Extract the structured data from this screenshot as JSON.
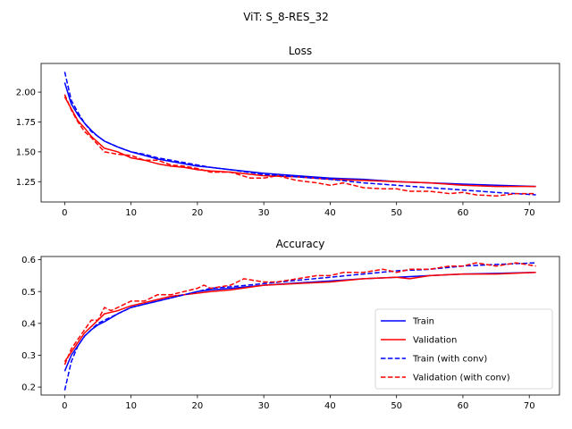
{
  "suptitle": "ViT: S_8-RES_32",
  "chart_data": [
    {
      "type": "line",
      "title": "Loss",
      "xlabel": "",
      "ylabel": "",
      "xlim": [
        -3.55,
        74.55
      ],
      "ylim": [
        1.08,
        2.24
      ],
      "xticks": [
        0,
        10,
        20,
        30,
        40,
        50,
        60,
        70
      ],
      "yticks": [
        1.25,
        1.5,
        1.75,
        2.0
      ],
      "ytick_labels": [
        "1.25",
        "1.50",
        "1.75",
        "2.00"
      ],
      "grid": false,
      "series": [
        {
          "name": "Train",
          "color": "#0000ff",
          "dash": "solid",
          "x": [
            0,
            1,
            2,
            3,
            4,
            5,
            6,
            8,
            10,
            12,
            14,
            16,
            18,
            20,
            22,
            25,
            30,
            35,
            40,
            45,
            50,
            55,
            60,
            65,
            71
          ],
          "y": [
            2.08,
            1.9,
            1.81,
            1.74,
            1.68,
            1.63,
            1.59,
            1.54,
            1.5,
            1.47,
            1.44,
            1.42,
            1.4,
            1.38,
            1.37,
            1.35,
            1.32,
            1.3,
            1.28,
            1.27,
            1.25,
            1.24,
            1.23,
            1.22,
            1.21
          ]
        },
        {
          "name": "Validation",
          "color": "#ff0000",
          "dash": "solid",
          "x": [
            0,
            1,
            2,
            3,
            4,
            5,
            6,
            8,
            10,
            12,
            14,
            16,
            18,
            20,
            22,
            25,
            30,
            35,
            40,
            45,
            50,
            55,
            60,
            65,
            71
          ],
          "y": [
            1.96,
            1.86,
            1.76,
            1.7,
            1.63,
            1.58,
            1.53,
            1.5,
            1.45,
            1.43,
            1.4,
            1.38,
            1.37,
            1.35,
            1.34,
            1.33,
            1.3,
            1.29,
            1.27,
            1.26,
            1.25,
            1.24,
            1.22,
            1.21,
            1.21
          ]
        },
        {
          "name": "Train (with conv)",
          "color": "#0000ff",
          "dash": "dashed",
          "x": [
            0,
            1,
            2,
            3,
            4,
            5,
            6,
            8,
            10,
            12,
            14,
            16,
            18,
            20,
            22,
            25,
            30,
            35,
            40,
            45,
            50,
            55,
            60,
            65,
            71
          ],
          "y": [
            2.17,
            1.93,
            1.83,
            1.74,
            1.67,
            1.63,
            1.59,
            1.54,
            1.5,
            1.48,
            1.45,
            1.43,
            1.41,
            1.39,
            1.37,
            1.35,
            1.31,
            1.29,
            1.27,
            1.24,
            1.22,
            1.2,
            1.18,
            1.16,
            1.14
          ]
        },
        {
          "name": "Validation (with conv)",
          "color": "#ff0000",
          "dash": "dashed",
          "x": [
            0,
            1,
            2,
            3,
            4,
            5,
            6,
            8,
            10,
            12,
            14,
            16,
            18,
            20,
            22,
            25,
            28,
            30,
            32,
            35,
            38,
            40,
            42,
            45,
            48,
            50,
            52,
            55,
            58,
            60,
            62,
            65,
            68,
            71
          ],
          "y": [
            1.98,
            1.85,
            1.75,
            1.67,
            1.62,
            1.56,
            1.5,
            1.48,
            1.47,
            1.43,
            1.43,
            1.39,
            1.38,
            1.36,
            1.33,
            1.33,
            1.28,
            1.28,
            1.3,
            1.26,
            1.24,
            1.22,
            1.24,
            1.2,
            1.19,
            1.19,
            1.17,
            1.17,
            1.15,
            1.16,
            1.14,
            1.13,
            1.15,
            1.15
          ]
        }
      ]
    },
    {
      "type": "line",
      "title": "Accuracy",
      "xlabel": "",
      "ylabel": "",
      "xlim": [
        -3.55,
        74.55
      ],
      "ylim": [
        0.175,
        0.61
      ],
      "xticks": [
        0,
        10,
        20,
        30,
        40,
        50,
        60,
        70
      ],
      "yticks": [
        0.2,
        0.3,
        0.4,
        0.5,
        0.6
      ],
      "ytick_labels": [
        "0.2",
        "0.3",
        "0.4",
        "0.5",
        "0.6"
      ],
      "grid": false,
      "legend_position": "lower-right",
      "legend": [
        "Train",
        "Validation",
        "Train (with conv)",
        "Validation (with conv)"
      ],
      "series": [
        {
          "name": "Train",
          "color": "#0000ff",
          "dash": "solid",
          "x": [
            0,
            1,
            2,
            3,
            4,
            5,
            6,
            8,
            10,
            12,
            14,
            16,
            18,
            20,
            22,
            25,
            30,
            35,
            40,
            45,
            50,
            55,
            60,
            65,
            71
          ],
          "y": [
            0.25,
            0.3,
            0.33,
            0.36,
            0.38,
            0.395,
            0.405,
            0.43,
            0.45,
            0.46,
            0.47,
            0.48,
            0.49,
            0.5,
            0.505,
            0.51,
            0.52,
            0.527,
            0.533,
            0.54,
            0.545,
            0.55,
            0.555,
            0.557,
            0.56
          ]
        },
        {
          "name": "Validation",
          "color": "#ff0000",
          "dash": "solid",
          "x": [
            0,
            1,
            2,
            3,
            4,
            5,
            6,
            8,
            10,
            12,
            14,
            16,
            18,
            20,
            22,
            25,
            30,
            35,
            40,
            45,
            50,
            52,
            55,
            60,
            65,
            71
          ],
          "y": [
            0.28,
            0.31,
            0.34,
            0.37,
            0.39,
            0.41,
            0.43,
            0.44,
            0.455,
            0.465,
            0.475,
            0.485,
            0.49,
            0.495,
            0.5,
            0.505,
            0.52,
            0.525,
            0.53,
            0.54,
            0.545,
            0.54,
            0.55,
            0.555,
            0.555,
            0.56
          ]
        },
        {
          "name": "Train (with conv)",
          "color": "#0000ff",
          "dash": "dashed",
          "x": [
            0,
            1,
            2,
            3,
            4,
            5,
            6,
            8,
            10,
            12,
            14,
            16,
            18,
            20,
            22,
            25,
            30,
            35,
            40,
            45,
            50,
            55,
            60,
            65,
            71
          ],
          "y": [
            0.19,
            0.28,
            0.33,
            0.36,
            0.38,
            0.4,
            0.41,
            0.43,
            0.45,
            0.46,
            0.47,
            0.48,
            0.49,
            0.5,
            0.51,
            0.515,
            0.525,
            0.535,
            0.545,
            0.555,
            0.565,
            0.57,
            0.58,
            0.585,
            0.59
          ]
        },
        {
          "name": "Validation (with conv)",
          "color": "#ff0000",
          "dash": "dashed",
          "x": [
            0,
            1,
            2,
            3,
            4,
            5,
            6,
            7,
            8,
            10,
            12,
            14,
            16,
            18,
            20,
            21,
            22,
            25,
            27,
            30,
            32,
            35,
            38,
            40,
            42,
            45,
            48,
            50,
            52,
            55,
            58,
            60,
            62,
            65,
            68,
            71
          ],
          "y": [
            0.27,
            0.32,
            0.35,
            0.38,
            0.41,
            0.41,
            0.45,
            0.44,
            0.45,
            0.47,
            0.47,
            0.49,
            0.49,
            0.5,
            0.51,
            0.52,
            0.51,
            0.52,
            0.54,
            0.53,
            0.53,
            0.54,
            0.55,
            0.55,
            0.56,
            0.56,
            0.57,
            0.56,
            0.57,
            0.57,
            0.58,
            0.58,
            0.59,
            0.58,
            0.59,
            0.58
          ]
        }
      ]
    }
  ]
}
